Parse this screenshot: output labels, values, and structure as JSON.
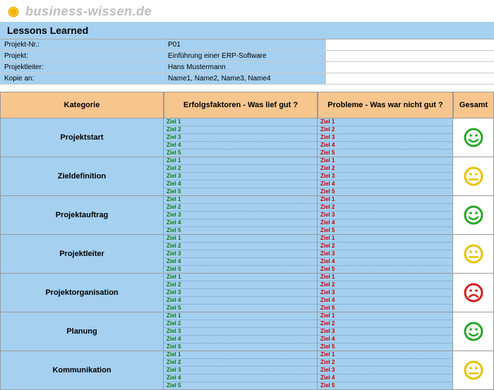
{
  "brand": "business-wissen.de",
  "title": "Lessons Learned",
  "meta": {
    "labels": {
      "projekt_nr": "Projekt-Nr.:",
      "projekt": "Projekt:",
      "projektleiter": "Projektleiter:",
      "kopie_an": "Kopie an:"
    },
    "values": {
      "projekt_nr": "P01",
      "projekt": "Einführung einer ERP-Software",
      "projektleiter": "Hans Mustermann",
      "kopie_an": "Name1, Name2, Name3, Name4"
    }
  },
  "columns": {
    "kategorie": "Kategorie",
    "erfolg": "Erfolgsfaktoren - Was lief gut ?",
    "probleme": "Probleme - Was war nicht gut ?",
    "gesamt": "Gesamt"
  },
  "rows": [
    {
      "category": "Projektstart",
      "mood": "happy-green"
    },
    {
      "category": "Zieldefinition",
      "mood": "neutral-yellow"
    },
    {
      "category": "Projektauftrag",
      "mood": "happy-green"
    },
    {
      "category": "Projektleiter",
      "mood": "neutral-yellow"
    },
    {
      "category": "Projektorganisation",
      "mood": "sad-red"
    },
    {
      "category": "Planung",
      "mood": "happy-green"
    },
    {
      "category": "Kommunikation",
      "mood": "neutral-yellow"
    }
  ],
  "goals": [
    "Ziel 1",
    "Ziel 2",
    "Ziel 3",
    "Ziel 4",
    "Ziel 5"
  ],
  "colors": {
    "brand_text": "#bdbdbd",
    "header_bg": "#a5d0f0",
    "column_header_bg": "#f7c68f",
    "cell_bg": "#a5d0f0",
    "good_text": "#0a7a0a",
    "bad_text": "#c40000",
    "smiley_green": "#2aa52a",
    "smiley_yellow": "#e6c200",
    "smiley_red": "#d11f1f",
    "dotted_rule": "#6a9bc4"
  }
}
